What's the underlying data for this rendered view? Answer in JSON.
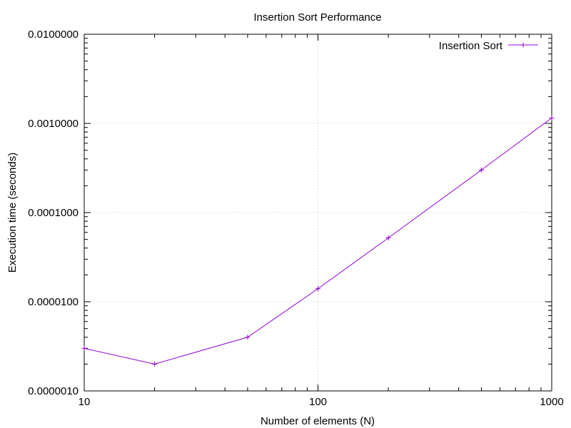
{
  "chart_data": {
    "type": "line",
    "title": "Insertion Sort Performance",
    "xlabel": "Number of elements (N)",
    "ylabel": "Execution time (seconds)",
    "x_scale": "log",
    "y_scale": "log",
    "xlim": [
      10,
      1000
    ],
    "ylim": [
      1e-06,
      0.01
    ],
    "x_ticks": [
      10,
      100,
      1000
    ],
    "x_tick_labels": [
      "10",
      "100",
      "1000"
    ],
    "y_ticks": [
      1e-06,
      1e-05,
      0.0001,
      0.001,
      0.01
    ],
    "y_tick_labels": [
      "0.0000010",
      "0.0000100",
      "0.0001000",
      "0.0010000",
      "0.0100000"
    ],
    "grid": true,
    "legend_position": "top-right",
    "series": [
      {
        "name": "Insertion Sort",
        "color": "#9400d3",
        "marker": "plus",
        "x": [
          10,
          20,
          50,
          100,
          200,
          500,
          1000
        ],
        "y": [
          3e-06,
          2e-06,
          4e-06,
          1.4e-05,
          5.2e-05,
          0.0003,
          0.00115
        ]
      }
    ]
  }
}
